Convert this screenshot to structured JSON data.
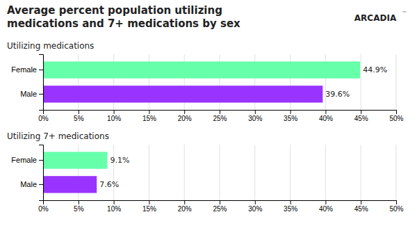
{
  "chart_data": [
    {
      "type": "bar",
      "title": "Average percent population utilizing\nmedications and 7+ medications by sex",
      "subtitle": "Utilizing medications",
      "annotations": [
        "ARCADIA",
        "™"
      ],
      "orientation": "horizontal",
      "categories": [
        "Female",
        "Male"
      ],
      "values": [
        44.9,
        39.6
      ],
      "value_labels": [
        "44.9%",
        "39.6%"
      ],
      "data_labels": true,
      "colors": [
        "#66ffaa",
        "#9933ff"
      ],
      "xlim": [
        0,
        50
      ],
      "xticks": [
        {
          "value": 0,
          "label": "0%"
        },
        {
          "value": 5,
          "label": "5%"
        },
        {
          "value": 10,
          "label": "10%"
        },
        {
          "value": 15,
          "label": "15%"
        },
        {
          "value": 20,
          "label": "20%"
        },
        {
          "value": 25,
          "label": "25%"
        },
        {
          "value": 30,
          "label": "30%"
        },
        {
          "value": 35,
          "label": "35%"
        },
        {
          "value": 40,
          "label": "40%"
        },
        {
          "value": 45,
          "label": "45%"
        },
        {
          "value": 50,
          "label": "50%"
        }
      ],
      "grid": true
    },
    {
      "type": "bar",
      "subtitle": "Utilizing 7+ medications",
      "orientation": "horizontal",
      "categories": [
        "Female",
        "Male"
      ],
      "values": [
        9.1,
        7.6
      ],
      "value_labels": [
        "9.1%",
        "7.6%"
      ],
      "data_labels": true,
      "colors": [
        "#66ffaa",
        "#9933ff"
      ],
      "xlim": [
        0,
        50
      ],
      "xticks": [
        {
          "value": 0,
          "label": "0%"
        },
        {
          "value": 5,
          "label": "5%"
        },
        {
          "value": 10,
          "label": "10%"
        },
        {
          "value": 15,
          "label": "15%"
        },
        {
          "value": 20,
          "label": "20%"
        },
        {
          "value": 25,
          "label": "25%"
        },
        {
          "value": 30,
          "label": "30%"
        },
        {
          "value": 35,
          "label": "35%"
        },
        {
          "value": 40,
          "label": "40%"
        },
        {
          "value": 45,
          "label": "45%"
        },
        {
          "value": 50,
          "label": "50%"
        }
      ],
      "grid": true
    }
  ]
}
